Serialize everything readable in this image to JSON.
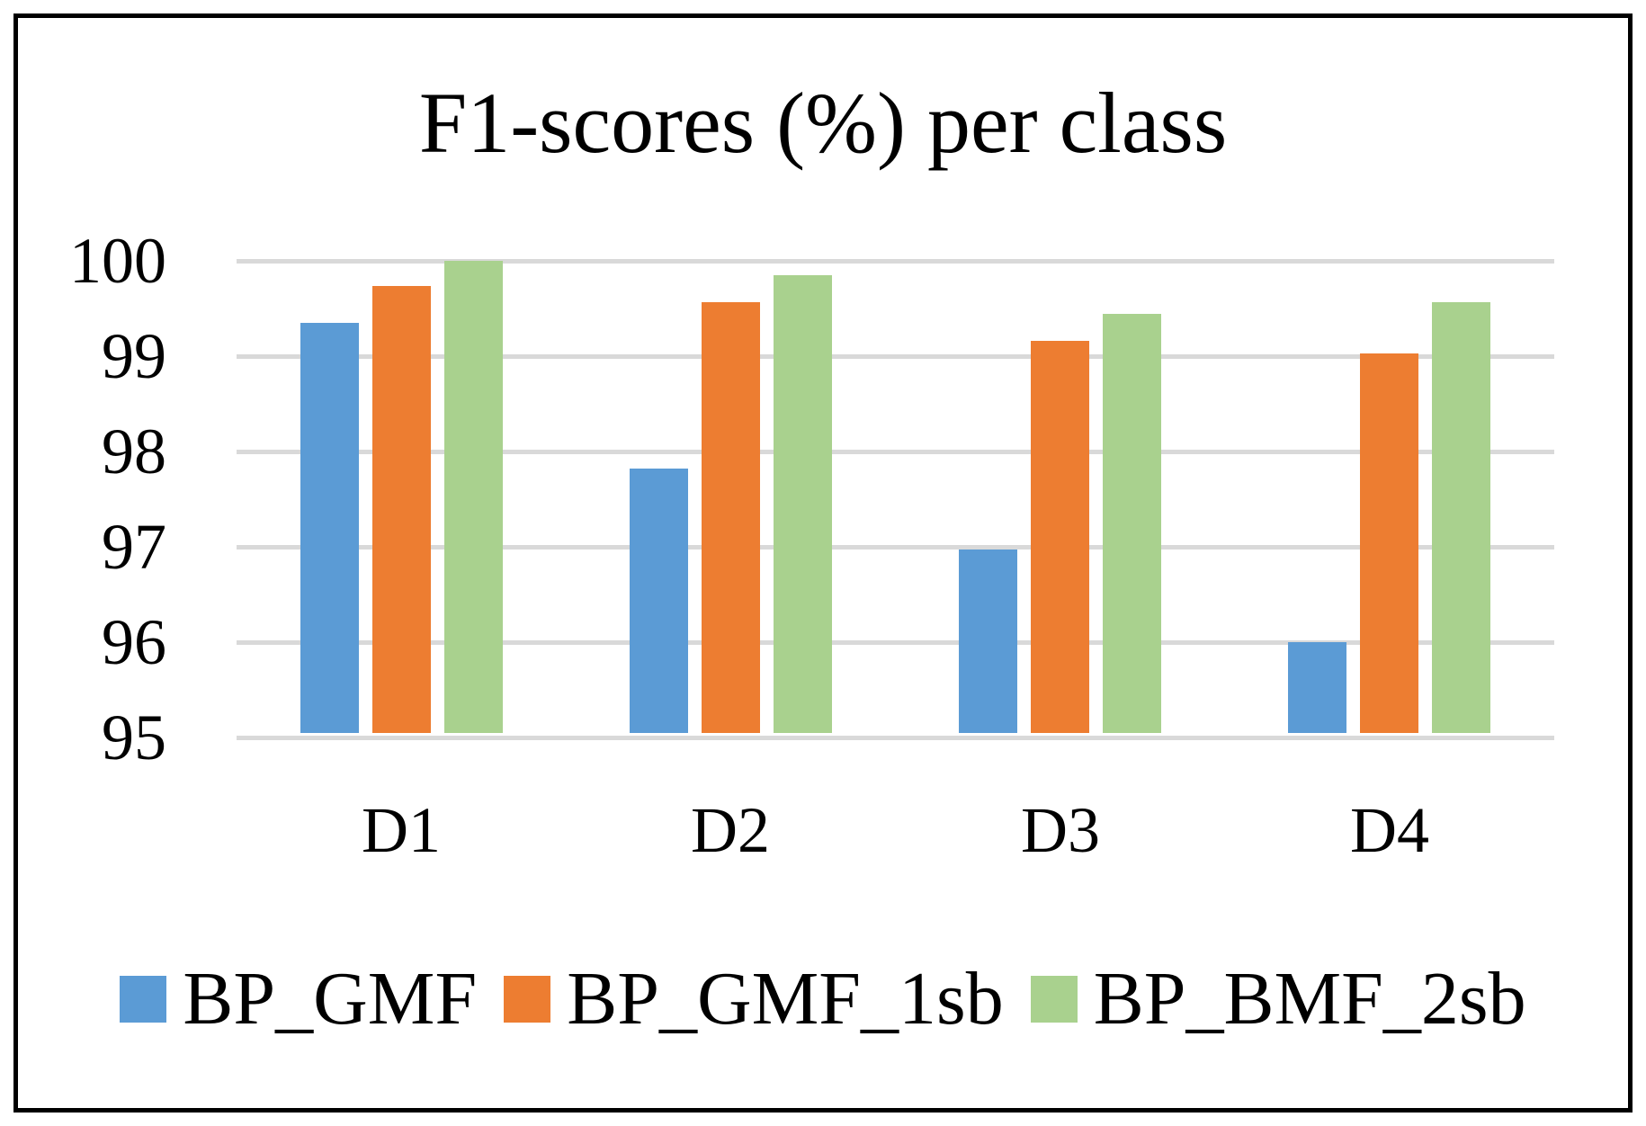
{
  "chart_data": {
    "type": "bar",
    "title": "F1-scores (%) per class",
    "categories": [
      "D1",
      "D2",
      "D3",
      "D4"
    ],
    "series": [
      {
        "name": "BP_GMF",
        "color": "#5B9BD5",
        "values": [
          99.35,
          97.82,
          96.97,
          96.0
        ]
      },
      {
        "name": "BP_GMF_1sb",
        "color": "#ED7D31",
        "values": [
          99.74,
          99.57,
          99.16,
          99.03
        ]
      },
      {
        "name": "BP_BMF_2sb",
        "color": "#A9D18E",
        "values": [
          100.0,
          99.85,
          99.44,
          99.57
        ]
      }
    ],
    "ylim": [
      95,
      100
    ],
    "yticks": [
      95,
      96,
      97,
      98,
      99,
      100
    ],
    "ytick_labels": [
      "95",
      "96",
      "97",
      "98",
      "99",
      "100"
    ],
    "xlabel": "",
    "ylabel": "",
    "grid": "horizontal",
    "gridline_color": "#D9D9D9",
    "frame_color": "#000000",
    "background_color": "#FFFFFF",
    "legend_position": "bottom"
  }
}
